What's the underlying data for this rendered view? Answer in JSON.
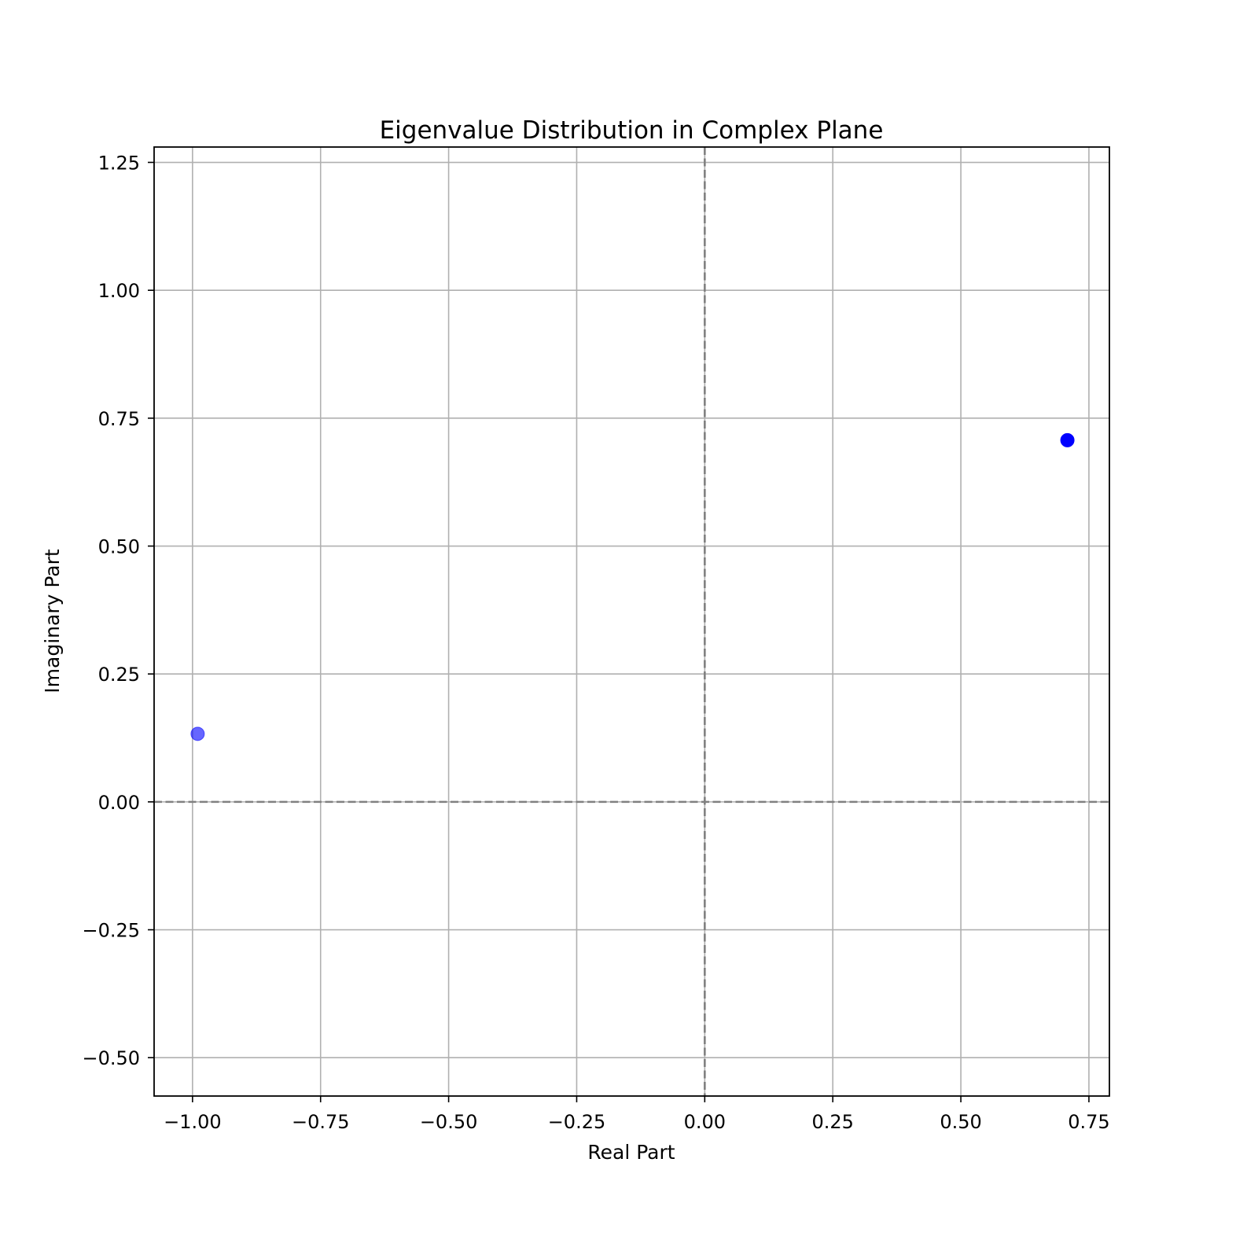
{
  "chart_data": {
    "type": "scatter",
    "title": "Eigenvalue Distribution in Complex Plane",
    "xlabel": "Real Part",
    "ylabel": "Imaginary Part",
    "xlim": [
      -1.075,
      0.79
    ],
    "ylim": [
      -0.575,
      1.28
    ],
    "xticks": [
      -1.0,
      -0.75,
      -0.5,
      -0.25,
      0.0,
      0.25,
      0.5,
      0.75
    ],
    "xtick_labels": [
      "−1.00",
      "−0.75",
      "−0.50",
      "−0.25",
      "0.00",
      "0.25",
      "0.50",
      "0.75"
    ],
    "yticks": [
      -0.5,
      -0.25,
      0.0,
      0.25,
      0.5,
      0.75,
      1.0,
      1.25
    ],
    "ytick_labels": [
      "−0.50",
      "−0.25",
      "0.00",
      "0.25",
      "0.50",
      "0.75",
      "1.00",
      "1.25"
    ],
    "grid": true,
    "reference_lines": {
      "x": 0.0,
      "y": 0.0,
      "style": "dashed",
      "color": "#808080"
    },
    "points": [
      {
        "x": -0.99,
        "y": 0.133,
        "color": "#0000ff",
        "opacity": 0.6
      },
      {
        "x": 0.708,
        "y": 0.707,
        "color": "#0000ff",
        "opacity": 1.0
      }
    ]
  }
}
